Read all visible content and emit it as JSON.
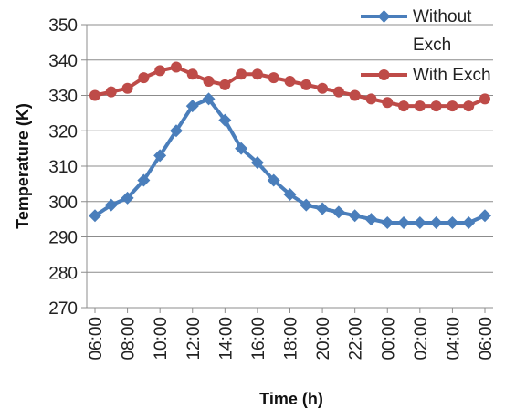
{
  "chart_data": {
    "type": "line",
    "title": "",
    "xlabel": "Time (h)",
    "ylabel": "Temperature (K)",
    "ylim": [
      270,
      350
    ],
    "yticks": [
      270,
      280,
      290,
      300,
      310,
      320,
      330,
      340,
      350
    ],
    "x": [
      "06:00",
      "07:00",
      "08:00",
      "09:00",
      "10:00",
      "11:00",
      "12:00",
      "13:00",
      "14:00",
      "15:00",
      "16:00",
      "17:00",
      "18:00",
      "19:00",
      "20:00",
      "21:00",
      "22:00",
      "23:00",
      "00:00",
      "01:00",
      "02:00",
      "03:00",
      "04:00",
      "05:00",
      "06:00"
    ],
    "xtick_labels": [
      "06:00",
      "08:00",
      "10:00",
      "12:00",
      "14:00",
      "16:00",
      "18:00",
      "20:00",
      "22:00",
      "00:00",
      "02:00",
      "04:00",
      "06:00"
    ],
    "grid": "horizontal",
    "legend_position": "top-right",
    "series": [
      {
        "name_lines": [
          "Without",
          "Exch"
        ],
        "color": "#4A7EBB",
        "marker": "diamond",
        "values": [
          296,
          299,
          301,
          306,
          313,
          320,
          327,
          329,
          323,
          315,
          311,
          306,
          302,
          299,
          298,
          297,
          296,
          295,
          294,
          294,
          294,
          294,
          294,
          294,
          296
        ]
      },
      {
        "name": "With Exch",
        "color": "#BE4B48",
        "marker": "circle",
        "values": [
          330,
          331,
          332,
          335,
          337,
          338,
          336,
          334,
          333,
          336,
          336,
          335,
          334,
          333,
          332,
          331,
          330,
          329,
          328,
          327,
          327,
          327,
          327,
          327,
          329
        ]
      }
    ]
  }
}
